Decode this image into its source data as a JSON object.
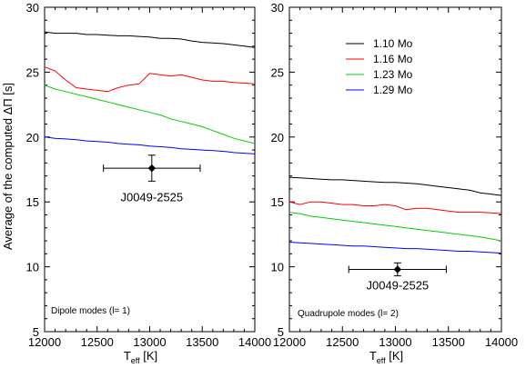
{
  "chart_data": [
    {
      "type": "line",
      "ylabel": "Average of the computed ΔΠ [s]",
      "xlabel_main": "T",
      "xlabel_sub": "eff",
      "xlabel_unit": " [K]",
      "xlim": [
        12000,
        14000
      ],
      "ylim": [
        5,
        30
      ],
      "xticks": [
        "12000",
        "12500",
        "13000",
        "13500",
        "14000"
      ],
      "yticks": [
        "5",
        "10",
        "15",
        "20",
        "25",
        "30"
      ],
      "annotation": "Dipole modes (l= 1)",
      "star": {
        "label": "J0049-2525",
        "x": 13020,
        "y": 17.6,
        "xerr": 460,
        "yerr": 1.0
      },
      "series": [
        {
          "name": "1.10 Mo",
          "color": "#000000",
          "x": [
            12000,
            12100,
            12200,
            12300,
            12400,
            12500,
            12600,
            12700,
            12800,
            12900,
            13000,
            13100,
            13200,
            13300,
            13400,
            13500,
            13600,
            13700,
            13800,
            13900,
            14000
          ],
          "y": [
            28.1,
            28.0,
            28.0,
            28.0,
            27.9,
            27.9,
            27.85,
            27.8,
            27.8,
            27.75,
            27.7,
            27.6,
            27.6,
            27.55,
            27.4,
            27.3,
            27.25,
            27.2,
            27.1,
            27.0,
            26.9
          ]
        },
        {
          "name": "1.16 Mo",
          "color": "#ff0000",
          "x": [
            12000,
            12100,
            12200,
            12300,
            12400,
            12500,
            12600,
            12700,
            12800,
            12900,
            13000,
            13100,
            13200,
            13300,
            13400,
            13500,
            13600,
            13700,
            13800,
            13900,
            14000
          ],
          "y": [
            25.4,
            25.1,
            24.4,
            23.8,
            23.7,
            23.6,
            23.5,
            23.8,
            24.0,
            24.1,
            24.9,
            24.8,
            24.7,
            24.8,
            24.6,
            24.4,
            24.3,
            24.3,
            24.2,
            24.15,
            24.1
          ]
        },
        {
          "name": "1.23 Mo",
          "color": "#00d000",
          "x": [
            12000,
            12100,
            12200,
            12300,
            12400,
            12500,
            12600,
            12700,
            12800,
            12900,
            13000,
            13100,
            13200,
            13300,
            13400,
            13500,
            13600,
            13700,
            13800,
            13900,
            14000
          ],
          "y": [
            24.0,
            23.7,
            23.5,
            23.3,
            23.1,
            22.9,
            22.7,
            22.5,
            22.3,
            22.1,
            21.9,
            21.7,
            21.4,
            21.2,
            21.0,
            20.8,
            20.5,
            20.2,
            19.9,
            19.7,
            19.5
          ]
        },
        {
          "name": "1.29 Mo",
          "color": "#0000ff",
          "x": [
            12000,
            12100,
            12200,
            12300,
            12400,
            12500,
            12600,
            12700,
            12800,
            12900,
            13000,
            13100,
            13200,
            13300,
            13400,
            13500,
            13600,
            13700,
            13800,
            13900,
            14000
          ],
          "y": [
            20.0,
            19.9,
            19.85,
            19.8,
            19.7,
            19.65,
            19.6,
            19.5,
            19.45,
            19.4,
            19.3,
            19.25,
            19.2,
            19.1,
            19.05,
            19.0,
            18.95,
            18.9,
            18.8,
            18.75,
            18.7
          ]
        }
      ]
    },
    {
      "type": "line",
      "xlabel_main": "T",
      "xlabel_sub": "eff",
      "xlabel_unit": " [K]",
      "xlim": [
        12000,
        14000
      ],
      "ylim": [
        5,
        30
      ],
      "xticks": [
        "12000",
        "12500",
        "13000",
        "13500",
        "14000"
      ],
      "yticks": [
        "5",
        "10",
        "15",
        "20",
        "25",
        "30"
      ],
      "annotation": "Quadrupole modes (l= 2)",
      "legend": "top-right",
      "star": {
        "label": "J0049-2525",
        "x": 13020,
        "y": 9.8,
        "xerr": 460,
        "yerr": 0.5
      },
      "series": [
        {
          "name": "1.10 Mo",
          "color": "#000000",
          "x": [
            12000,
            12100,
            12200,
            12300,
            12400,
            12500,
            12600,
            12700,
            12800,
            12900,
            13000,
            13100,
            13200,
            13300,
            13400,
            13500,
            13600,
            13700,
            13800,
            13900,
            14000
          ],
          "y": [
            16.9,
            16.85,
            16.8,
            16.75,
            16.7,
            16.7,
            16.65,
            16.6,
            16.55,
            16.5,
            16.5,
            16.45,
            16.4,
            16.3,
            16.2,
            16.1,
            16.0,
            15.9,
            15.7,
            15.6,
            15.5
          ]
        },
        {
          "name": "1.16 Mo",
          "color": "#ff0000",
          "x": [
            12000,
            12100,
            12200,
            12300,
            12400,
            12500,
            12600,
            12700,
            12800,
            12900,
            13000,
            13100,
            13200,
            13300,
            13400,
            13500,
            13600,
            13700,
            13800,
            13900,
            14000
          ],
          "y": [
            15.0,
            14.8,
            15.0,
            15.0,
            14.9,
            14.8,
            14.8,
            14.7,
            14.7,
            14.8,
            14.7,
            14.4,
            14.5,
            14.5,
            14.4,
            14.3,
            14.2,
            14.2,
            14.2,
            14.15,
            14.1
          ]
        },
        {
          "name": "1.23 Mo",
          "color": "#00d000",
          "x": [
            12000,
            12100,
            12200,
            12300,
            12400,
            12500,
            12600,
            12700,
            12800,
            12900,
            13000,
            13100,
            13200,
            13300,
            13400,
            13500,
            13600,
            13700,
            13800,
            13900,
            14000
          ],
          "y": [
            14.2,
            14.1,
            13.9,
            13.8,
            13.7,
            13.6,
            13.5,
            13.4,
            13.3,
            13.2,
            13.1,
            13.0,
            12.9,
            12.8,
            12.7,
            12.6,
            12.5,
            12.4,
            12.3,
            12.15,
            12.0
          ]
        },
        {
          "name": "1.29 Mo",
          "color": "#0000ff",
          "x": [
            12000,
            12100,
            12200,
            12300,
            12400,
            12500,
            12600,
            12700,
            12800,
            12900,
            13000,
            13100,
            13200,
            13300,
            13400,
            13500,
            13600,
            13700,
            13800,
            13900,
            14000
          ],
          "y": [
            11.9,
            11.85,
            11.8,
            11.75,
            11.7,
            11.65,
            11.6,
            11.6,
            11.55,
            11.5,
            11.45,
            11.4,
            11.4,
            11.35,
            11.3,
            11.25,
            11.2,
            11.2,
            11.15,
            11.1,
            11.05
          ]
        }
      ]
    }
  ]
}
